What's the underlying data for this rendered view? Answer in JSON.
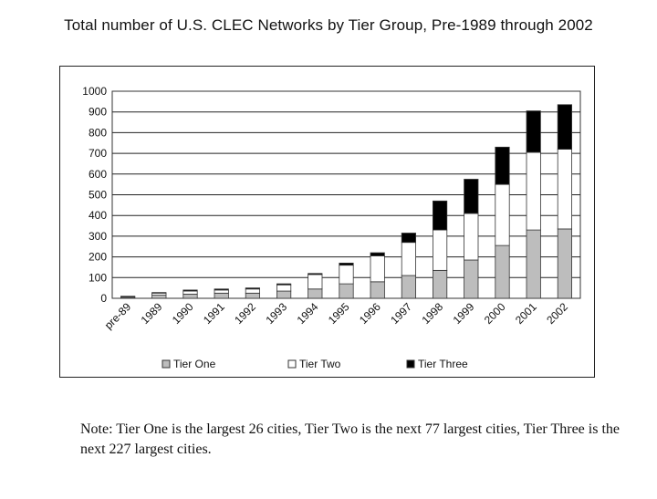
{
  "chart_data": {
    "type": "bar",
    "stacked": true,
    "title": "Total number of U.S. CLEC Networks by Tier Group, Pre-1989 through 2002",
    "xlabel": "",
    "ylabel": "",
    "ylim": [
      0,
      1000
    ],
    "yticks": [
      "0",
      "100",
      "200",
      "300",
      "400",
      "500",
      "600",
      "700",
      "800",
      "900",
      "1000"
    ],
    "grid": true,
    "legend_position": "bottom",
    "categories": [
      "pre-89",
      "1989",
      "1990",
      "1991",
      "1992",
      "1993",
      "1994",
      "1995",
      "1996",
      "1997",
      "1998",
      "1999",
      "2000",
      "2001",
      "2002"
    ],
    "series": [
      {
        "name": "Tier One",
        "color": "#bdbdbd",
        "values": [
          5,
          15,
          20,
          25,
          25,
          35,
          45,
          70,
          80,
          110,
          135,
          185,
          255,
          330,
          335
        ]
      },
      {
        "name": "Tier Two",
        "color": "#ffffff",
        "values": [
          3,
          10,
          15,
          15,
          20,
          30,
          70,
          90,
          125,
          160,
          195,
          225,
          295,
          375,
          385
        ]
      },
      {
        "name": "Tier Three",
        "color": "#000000",
        "values": [
          2,
          3,
          5,
          5,
          5,
          5,
          5,
          10,
          15,
          45,
          140,
          165,
          180,
          200,
          215
        ]
      }
    ]
  },
  "note": "Note: Tier One is the largest 26 cities, Tier Two is the next 77 largest cities, Tier Three is the next 227 largest cities."
}
